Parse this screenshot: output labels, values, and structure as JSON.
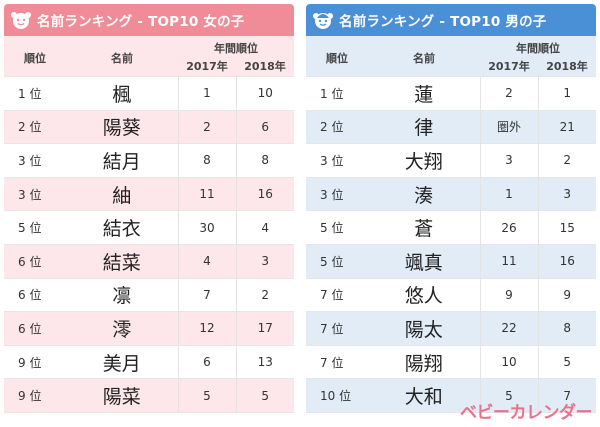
{
  "girls": {
    "title": "名前ランキング - TOP10 女の子",
    "headers": {
      "rank": "順位",
      "name": "名前",
      "years": "年間順位",
      "y2017": "2017年",
      "y2018": "2018年"
    },
    "rows": [
      {
        "rank": "1 位",
        "name": "楓",
        "y2017": "1",
        "y2018": "10"
      },
      {
        "rank": "2 位",
        "name": "陽葵",
        "y2017": "2",
        "y2018": "6"
      },
      {
        "rank": "3 位",
        "name": "結月",
        "y2017": "8",
        "y2018": "8"
      },
      {
        "rank": "3 位",
        "name": "紬",
        "y2017": "11",
        "y2018": "16"
      },
      {
        "rank": "5 位",
        "name": "結衣",
        "y2017": "30",
        "y2018": "4"
      },
      {
        "rank": "6 位",
        "name": "結菜",
        "y2017": "4",
        "y2018": "3"
      },
      {
        "rank": "6 位",
        "name": "凛",
        "y2017": "7",
        "y2018": "2"
      },
      {
        "rank": "6 位",
        "name": "澪",
        "y2017": "12",
        "y2018": "17"
      },
      {
        "rank": "9 位",
        "name": "美月",
        "y2017": "6",
        "y2018": "13"
      },
      {
        "rank": "9 位",
        "name": "陽菜",
        "y2017": "5",
        "y2018": "5"
      }
    ]
  },
  "boys": {
    "title": "名前ランキング - TOP10 男の子",
    "headers": {
      "rank": "順位",
      "name": "名前",
      "years": "年間順位",
      "y2017": "2017年",
      "y2018": "2018年"
    },
    "rows": [
      {
        "rank": "1 位",
        "name": "蓮",
        "y2017": "2",
        "y2018": "1"
      },
      {
        "rank": "2 位",
        "name": "律",
        "y2017": "圏外",
        "y2018": "21"
      },
      {
        "rank": "3 位",
        "name": "大翔",
        "y2017": "3",
        "y2018": "2"
      },
      {
        "rank": "3 位",
        "name": "湊",
        "y2017": "1",
        "y2018": "3"
      },
      {
        "rank": "5 位",
        "name": "蒼",
        "y2017": "26",
        "y2018": "15"
      },
      {
        "rank": "5 位",
        "name": "颯真",
        "y2017": "11",
        "y2018": "16"
      },
      {
        "rank": "7 位",
        "name": "悠人",
        "y2017": "9",
        "y2018": "9"
      },
      {
        "rank": "7 位",
        "name": "陽太",
        "y2017": "22",
        "y2018": "8"
      },
      {
        "rank": "7 位",
        "name": "陽翔",
        "y2017": "10",
        "y2018": "5"
      },
      {
        "rank": "10 位",
        "name": "大和",
        "y2017": "5",
        "y2018": "7"
      }
    ]
  },
  "logo": "ベビーカレンダー",
  "colors": {
    "girls_accent": "#f08b98",
    "girls_stripe": "#fde7ea",
    "boys_accent": "#4a90d6",
    "boys_stripe": "#e1ecf7"
  },
  "icons": {
    "girls": "girl-face-icon",
    "boys": "boy-face-icon"
  }
}
